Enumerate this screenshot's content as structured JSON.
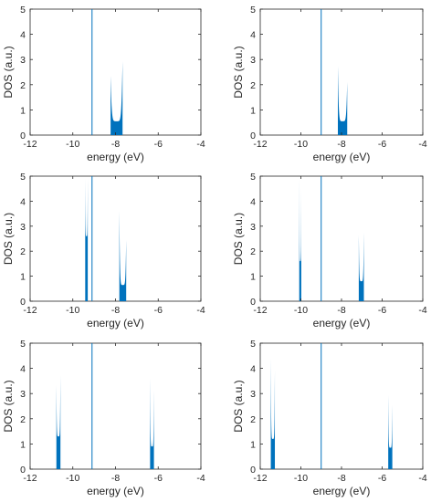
{
  "colors": {
    "series": "#0072BD",
    "axis": "#262626",
    "background": "#FFFFFF"
  },
  "chart_data": [
    {
      "type": "area",
      "xlabel": "energy (eV)",
      "ylabel": "DOS (a.u.)",
      "xlim": [
        -12,
        -4
      ],
      "ylim": [
        0,
        5
      ],
      "xticks": [
        "-12",
        "-10",
        "-8",
        "-6",
        "-4"
      ],
      "yticks": [
        "0",
        "1",
        "2",
        "3",
        "4",
        "5"
      ],
      "fermi_level": -9.1,
      "bands": [
        {
          "lo": -8.23,
          "hi": -7.67,
          "peak_left": 2.4,
          "peak_right": 3.0,
          "floor": 0.55
        }
      ]
    },
    {
      "type": "area",
      "xlabel": "energy (eV)",
      "ylabel": "DOS (a.u.)",
      "xlim": [
        -12,
        -4
      ],
      "ylim": [
        0,
        5
      ],
      "xticks": [
        "-12",
        "-10",
        "-8",
        "-6",
        "-4"
      ],
      "yticks": [
        "0",
        "1",
        "2",
        "3",
        "4",
        "5"
      ],
      "fermi_level": -9.0,
      "bands": [
        {
          "lo": -8.18,
          "hi": -7.72,
          "peak_left": 2.8,
          "peak_right": 2.15,
          "floor": 0.55
        }
      ]
    },
    {
      "type": "area",
      "xlabel": "energy (eV)",
      "ylabel": "DOS (a.u.)",
      "xlim": [
        -12,
        -4
      ],
      "ylim": [
        0,
        5
      ],
      "xticks": [
        "-12",
        "-10",
        "-8",
        "-6",
        "-4"
      ],
      "yticks": [
        "0",
        "1",
        "2",
        "3",
        "4",
        "5"
      ],
      "fermi_level": -9.1,
      "bands": [
        {
          "lo": -9.42,
          "hi": -9.3,
          "peak_left": 5.0,
          "peak_right": 5.0,
          "floor": 2.6
        },
        {
          "lo": -7.82,
          "hi": -7.5,
          "peak_left": 3.7,
          "peak_right": 2.5,
          "floor": 0.65
        }
      ]
    },
    {
      "type": "area",
      "xlabel": "energy (eV)",
      "ylabel": "DOS (a.u.)",
      "xlim": [
        -12,
        -4
      ],
      "ylim": [
        0,
        5
      ],
      "xticks": [
        "-12",
        "-10",
        "-8",
        "-6",
        "-4"
      ],
      "yticks": [
        "0",
        "1",
        "2",
        "3",
        "4",
        "5"
      ],
      "fermi_level": -9.0,
      "bands": [
        {
          "lo": -10.08,
          "hi": -9.98,
          "peak_left": 5.0,
          "peak_right": 4.6,
          "floor": 1.6
        },
        {
          "lo": -7.15,
          "hi": -6.9,
          "peak_left": 2.7,
          "peak_right": 2.8,
          "floor": 0.8
        }
      ]
    },
    {
      "type": "area",
      "xlabel": "energy (eV)",
      "ylabel": "DOS (a.u.)",
      "xlim": [
        -12,
        -4
      ],
      "ylim": [
        0,
        5
      ],
      "xticks": [
        "-12",
        "-10",
        "-8",
        "-6",
        "-4"
      ],
      "yticks": [
        "0",
        "1",
        "2",
        "3",
        "4",
        "5"
      ],
      "fermi_level": -9.1,
      "bands": [
        {
          "lo": -10.77,
          "hi": -10.58,
          "peak_left": 3.4,
          "peak_right": 3.8,
          "floor": 1.3
        },
        {
          "lo": -6.38,
          "hi": -6.2,
          "peak_left": 3.7,
          "peak_right": 3.2,
          "floor": 0.9
        }
      ]
    },
    {
      "type": "area",
      "xlabel": "energy (eV)",
      "ylabel": "DOS (a.u.)",
      "xlim": [
        -12,
        -4
      ],
      "ylim": [
        0,
        5
      ],
      "xticks": [
        "-12",
        "-10",
        "-8",
        "-6",
        "-4"
      ],
      "yticks": [
        "0",
        "1",
        "2",
        "3",
        "4",
        "5"
      ],
      "fermi_level": -9.0,
      "bands": [
        {
          "lo": -11.48,
          "hi": -11.28,
          "peak_left": 4.5,
          "peak_right": 4.0,
          "floor": 1.2
        },
        {
          "lo": -5.7,
          "hi": -5.5,
          "peak_left": 3.0,
          "peak_right": 2.6,
          "floor": 0.85
        }
      ]
    }
  ]
}
